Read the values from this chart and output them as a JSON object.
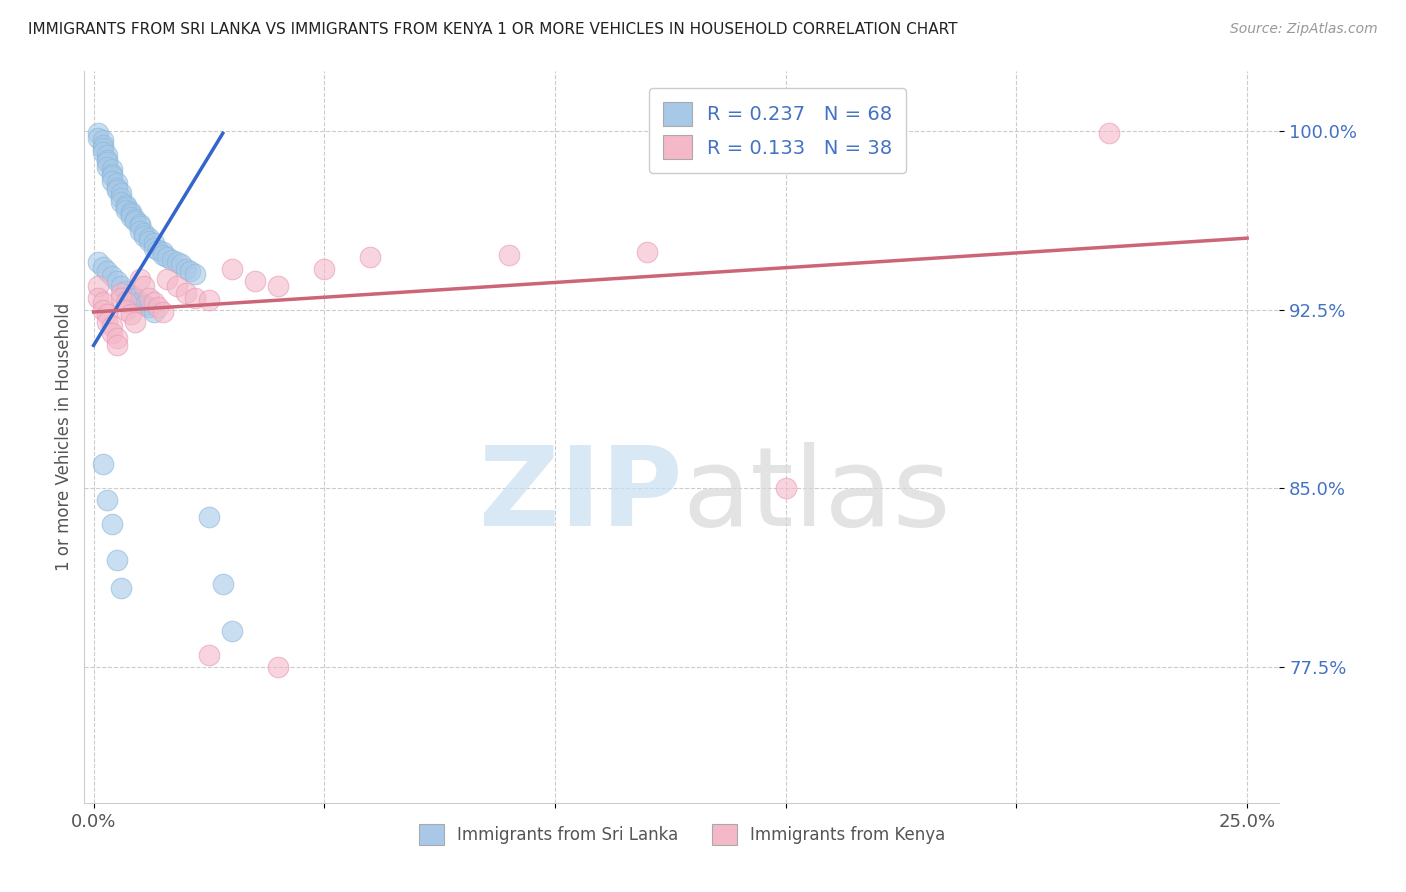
{
  "title": "IMMIGRANTS FROM SRI LANKA VS IMMIGRANTS FROM KENYA 1 OR MORE VEHICLES IN HOUSEHOLD CORRELATION CHART",
  "source": "Source: ZipAtlas.com",
  "ylabel": "1 or more Vehicles in Household",
  "xlim": [
    -0.002,
    0.257
  ],
  "ylim": [
    0.718,
    1.025
  ],
  "xticks": [
    0.0,
    0.05,
    0.1,
    0.15,
    0.2,
    0.25
  ],
  "xticklabels": [
    "0.0%",
    "",
    "",
    "",
    "",
    "25.0%"
  ],
  "ytick_vals": [
    0.775,
    0.85,
    0.925,
    1.0
  ],
  "ytick_labels": [
    "77.5%",
    "85.0%",
    "92.5%",
    "100.0%"
  ],
  "color_blue": "#a8c8e8",
  "color_pink": "#f4b8c8",
  "line_blue": "#3366cc",
  "line_pink": "#cc6677",
  "legend_r1": "0.237",
  "legend_n1": "68",
  "legend_r2": "0.133",
  "legend_n2": "38",
  "sl_x": [
    0.001,
    0.001,
    0.002,
    0.002,
    0.002,
    0.002,
    0.003,
    0.003,
    0.003,
    0.003,
    0.004,
    0.004,
    0.004,
    0.004,
    0.005,
    0.005,
    0.005,
    0.006,
    0.006,
    0.006,
    0.007,
    0.007,
    0.007,
    0.008,
    0.008,
    0.008,
    0.009,
    0.009,
    0.01,
    0.01,
    0.01,
    0.011,
    0.011,
    0.012,
    0.012,
    0.013,
    0.013,
    0.014,
    0.015,
    0.015,
    0.016,
    0.017,
    0.018,
    0.019,
    0.02,
    0.021,
    0.022,
    0.025,
    0.028,
    0.03,
    0.001,
    0.002,
    0.003,
    0.004,
    0.005,
    0.006,
    0.007,
    0.008,
    0.009,
    0.01,
    0.011,
    0.012,
    0.013,
    0.002,
    0.003,
    0.004,
    0.005,
    0.006
  ],
  "sl_y": [
    0.999,
    0.997,
    0.996,
    0.994,
    0.993,
    0.991,
    0.99,
    0.988,
    0.987,
    0.985,
    0.984,
    0.982,
    0.981,
    0.979,
    0.978,
    0.976,
    0.975,
    0.974,
    0.972,
    0.97,
    0.969,
    0.968,
    0.967,
    0.966,
    0.965,
    0.964,
    0.963,
    0.962,
    0.961,
    0.96,
    0.958,
    0.957,
    0.956,
    0.955,
    0.954,
    0.953,
    0.951,
    0.95,
    0.949,
    0.948,
    0.947,
    0.946,
    0.945,
    0.944,
    0.942,
    0.941,
    0.94,
    0.838,
    0.81,
    0.79,
    0.945,
    0.943,
    0.941,
    0.939,
    0.937,
    0.935,
    0.933,
    0.931,
    0.93,
    0.928,
    0.927,
    0.926,
    0.924,
    0.86,
    0.845,
    0.835,
    0.82,
    0.808
  ],
  "ke_x": [
    0.001,
    0.001,
    0.002,
    0.002,
    0.003,
    0.003,
    0.004,
    0.004,
    0.005,
    0.005,
    0.006,
    0.006,
    0.007,
    0.007,
    0.008,
    0.009,
    0.01,
    0.011,
    0.012,
    0.013,
    0.014,
    0.015,
    0.016,
    0.018,
    0.02,
    0.022,
    0.025,
    0.03,
    0.035,
    0.04,
    0.05,
    0.06,
    0.09,
    0.12,
    0.15,
    0.22,
    0.025,
    0.04
  ],
  "ke_y": [
    0.935,
    0.93,
    0.928,
    0.925,
    0.923,
    0.92,
    0.918,
    0.915,
    0.913,
    0.91,
    0.932,
    0.93,
    0.928,
    0.925,
    0.923,
    0.92,
    0.938,
    0.935,
    0.93,
    0.928,
    0.926,
    0.924,
    0.938,
    0.935,
    0.932,
    0.93,
    0.929,
    0.942,
    0.937,
    0.935,
    0.942,
    0.947,
    0.948,
    0.949,
    0.85,
    0.999,
    0.78,
    0.775
  ],
  "sl_line_x": [
    0.0,
    0.028
  ],
  "sl_line_y": [
    0.91,
    0.999
  ],
  "ke_line_x": [
    0.0,
    0.25
  ],
  "ke_line_y": [
    0.924,
    0.955
  ]
}
